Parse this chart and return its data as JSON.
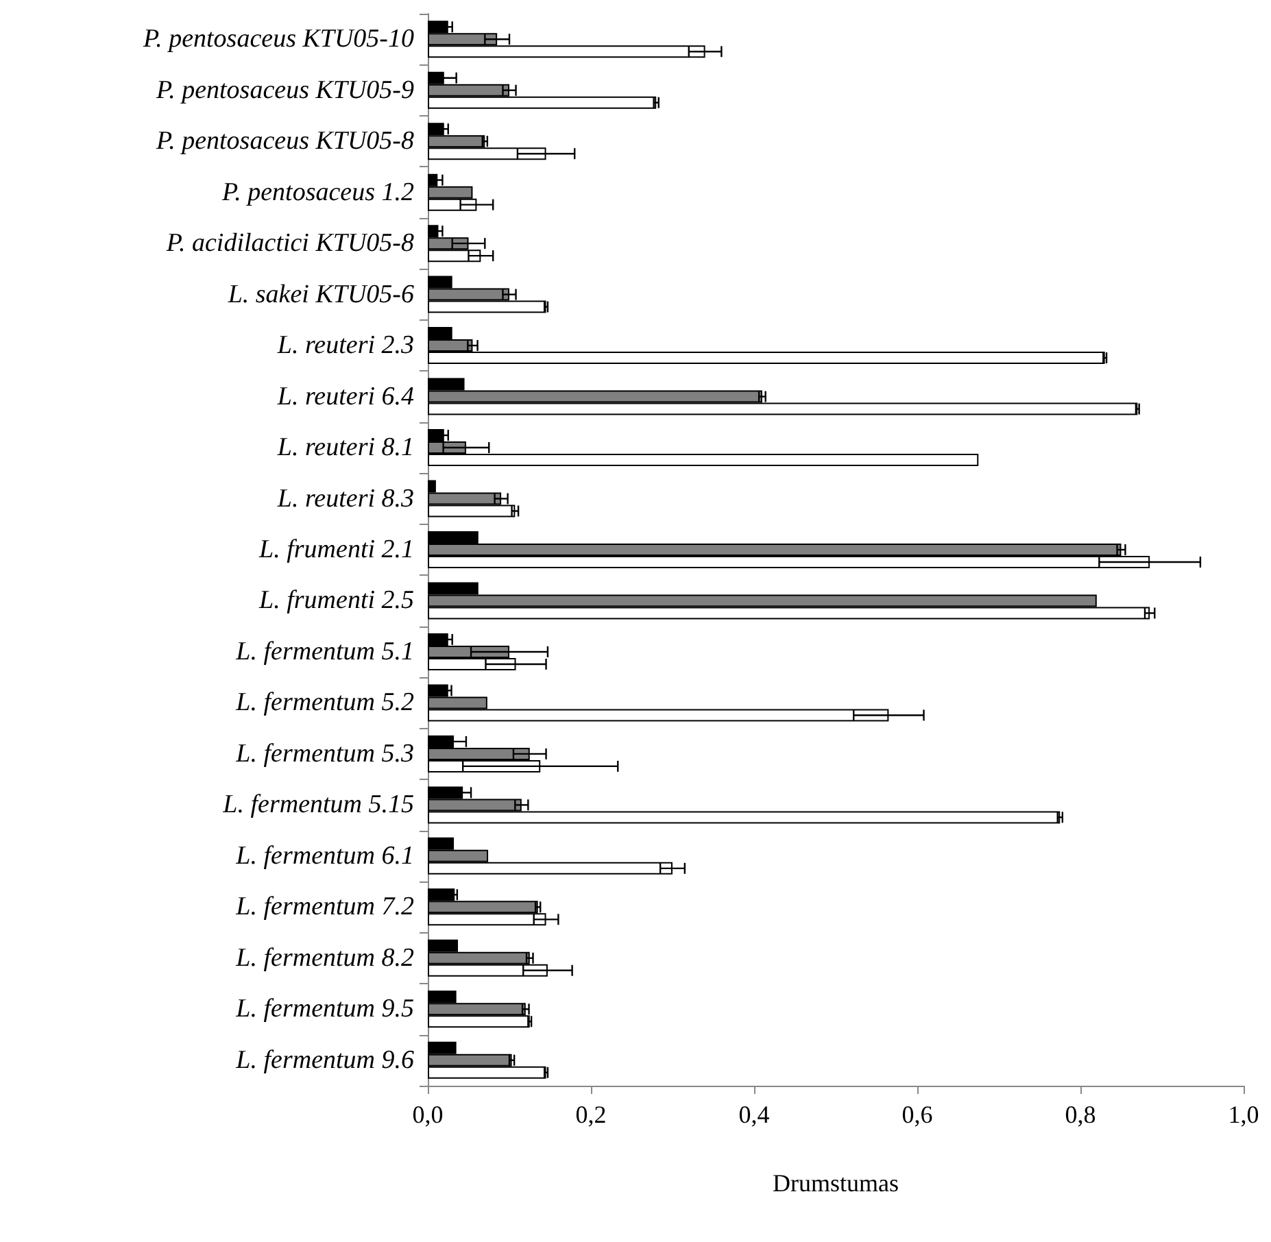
{
  "chart_data": {
    "type": "bar",
    "orientation": "horizontal",
    "xlabel": "Drumstumas",
    "categories": [
      "P. pentosaceus KTU05-10",
      "P. pentosaceus KTU05-9",
      "P. pentosaceus KTU05-8",
      "P. pentosaceus 1.2",
      "P. acidilactici KTU05-8",
      "L. sakei KTU05-6",
      "L. reuteri 2.3",
      "L. reuteri 6.4",
      "L. reuteri 8.1",
      "L. reuteri 8.3",
      "L. frumenti 2.1",
      "L. frumenti 2.5",
      "L. fermentum 5.1",
      "L. fermentum 5.2",
      "L. fermentum 5.3",
      "L. fermentum 5.15",
      "L. fermentum 6.1",
      "L. fermentum 7.2",
      "L. fermentum 8.2",
      "L. fermentum 9.5",
      "L. fermentum 9.6"
    ],
    "series": [
      {
        "color": "#000000",
        "values": [
          0.025,
          0.02,
          0.02,
          0.012,
          0.013,
          0.03,
          0.03,
          0.045,
          0.02,
          0.01,
          0.062,
          0.062,
          0.025,
          0.025,
          0.032,
          0.043,
          0.032,
          0.033,
          0.037,
          0.035,
          0.035
        ],
        "errors": [
          0.005,
          0.015,
          0.005,
          0.006,
          0.005,
          null,
          null,
          null,
          0.005,
          null,
          null,
          null,
          0.005,
          0.004,
          0.015,
          0.01,
          null,
          0.003,
          null,
          null,
          null
        ]
      },
      {
        "color": "#808080",
        "values": [
          0.085,
          0.1,
          0.07,
          0.055,
          0.05,
          0.1,
          0.055,
          0.41,
          0.047,
          0.09,
          0.85,
          0.82,
          0.1,
          0.073,
          0.125,
          0.115,
          0.074,
          0.135,
          0.125,
          0.12,
          0.103
        ],
        "errors": [
          0.015,
          0.008,
          0.003,
          null,
          0.02,
          0.008,
          0.006,
          0.004,
          0.028,
          0.008,
          0.005,
          null,
          0.047,
          null,
          0.02,
          0.008,
          null,
          0.003,
          0.004,
          0.004,
          0.003
        ]
      },
      {
        "color": "#ffffff",
        "values": [
          0.34,
          0.28,
          0.145,
          0.06,
          0.065,
          0.145,
          0.83,
          0.87,
          0.675,
          0.107,
          0.885,
          0.885,
          0.108,
          0.565,
          0.138,
          0.775,
          0.3,
          0.145,
          0.147,
          0.125,
          0.145
        ],
        "errors": [
          0.02,
          0.003,
          0.035,
          0.02,
          0.015,
          0.002,
          0.002,
          0.002,
          null,
          0.004,
          0.062,
          0.006,
          0.037,
          0.043,
          0.095,
          0.003,
          0.015,
          0.015,
          0.03,
          0.002,
          0.002
        ]
      }
    ],
    "xlim": [
      0,
      1
    ],
    "xticks": [
      {
        "value": 0,
        "label": "0,0"
      },
      {
        "value": 0.2,
        "label": "0,2"
      },
      {
        "value": 0.4,
        "label": "0,4"
      },
      {
        "value": 0.6,
        "label": "0,6"
      },
      {
        "value": 0.8,
        "label": "0,8"
      },
      {
        "value": 1,
        "label": "1,0"
      }
    ],
    "grid": false
  }
}
